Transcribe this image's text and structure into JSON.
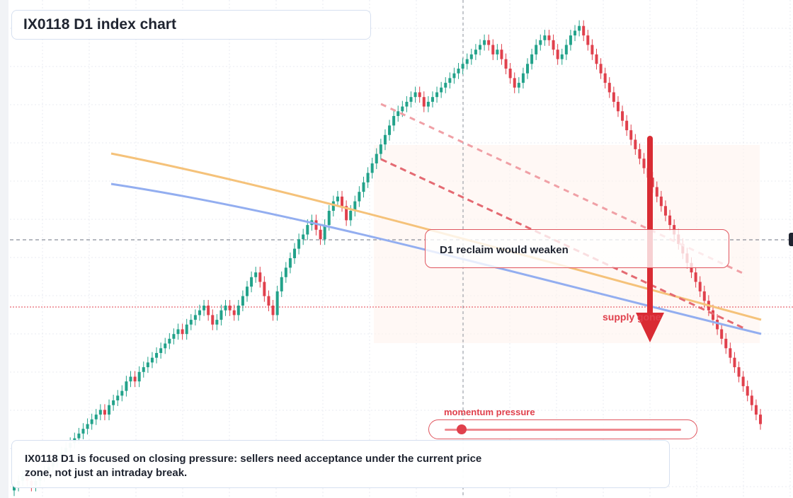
{
  "title": "IX0118 D1 index chart",
  "note": "IX0118 D1 is focused on closing pressure: sellers need acceptance under the current price zone, not just an intraday break.",
  "annotations": {
    "reclaim": "D1 reclaim would weaken",
    "supply": "supply gone",
    "momentum_label": "momentum pressure",
    "momentum_level": 0.07
  },
  "colors": {
    "up": "#22a28a",
    "down": "#e0404c",
    "ma_fast": "#f5c27a",
    "ma_slow": "#93aef0",
    "arrow": "#d92b33"
  },
  "chart_data": {
    "type": "candlestick",
    "symbol": "IX0118",
    "timeframe": "D1",
    "ylim": [
      0,
      100
    ],
    "closes": [
      2,
      3,
      4,
      3,
      2,
      3,
      4,
      5,
      6,
      7,
      8,
      9,
      10,
      11,
      12,
      13,
      14,
      15,
      16,
      17,
      18,
      17,
      19,
      20,
      21,
      22,
      24,
      25,
      24,
      26,
      27,
      28,
      29,
      30,
      31,
      32,
      33,
      34,
      35,
      34,
      36,
      37,
      38,
      39,
      40,
      38,
      36,
      37,
      39,
      40,
      39,
      38,
      40,
      42,
      44,
      46,
      47,
      45,
      42,
      40,
      38,
      43,
      46,
      48,
      50,
      52,
      54,
      55,
      57,
      58,
      56,
      54,
      57,
      60,
      62,
      63,
      61,
      58,
      60,
      62,
      64,
      66,
      68,
      70,
      72,
      74,
      76,
      78,
      80,
      81,
      82,
      83,
      84,
      85,
      84,
      82,
      83,
      84,
      85,
      86,
      87,
      88,
      89,
      90,
      91,
      92,
      93,
      94,
      95,
      96,
      95,
      93,
      94,
      92,
      90,
      88,
      86,
      87,
      89,
      91,
      93,
      95,
      96,
      97,
      96,
      94,
      92,
      93,
      95,
      97,
      98,
      99,
      97,
      95,
      93,
      91,
      89,
      87,
      85,
      83,
      81,
      79,
      77,
      75,
      73,
      71,
      69,
      67,
      65,
      63,
      61,
      59,
      57,
      55,
      53,
      51,
      49,
      47,
      45,
      43,
      41,
      39,
      37,
      35,
      33,
      31,
      29,
      27,
      25,
      23,
      21,
      19,
      17,
      15
    ],
    "series": [
      {
        "name": "",
        "values": [
          82,
          70,
          60,
          48,
          38
        ]
      },
      {
        "name": "",
        "values": [
          78,
          66,
          56,
          44,
          34
        ]
      }
    ]
  }
}
